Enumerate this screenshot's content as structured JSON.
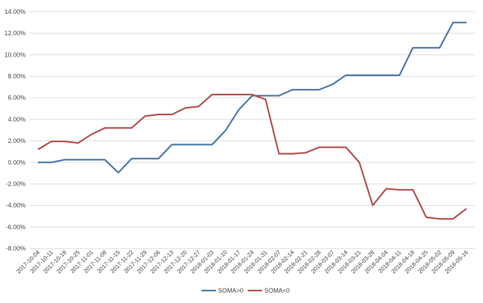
{
  "chart_data": {
    "type": "line",
    "title": "",
    "xlabel": "",
    "ylabel": "",
    "ylim": [
      -8,
      14
    ],
    "ytick_step": 2,
    "grid": true,
    "legend_position": "bottom",
    "x": [
      "2017-10-04",
      "2017-10-11",
      "2017-10-18",
      "2017-10-25",
      "2017-11-01",
      "2017-11-08",
      "2017-11-15",
      "2017-11-22",
      "2017-11-29",
      "2017-12-06",
      "2017-12-13",
      "2017-12-20",
      "2017-12-27",
      "2018-01-03",
      "2018-01-10",
      "2018-01-17",
      "2018-01-24",
      "2018-01-31",
      "2018-02-07",
      "2018-02-14",
      "2018-02-21",
      "2018-02-28",
      "2018-03-07",
      "2018-03-14",
      "2018-03-21",
      "2018-03-28",
      "2018-04-04",
      "2018-04-11",
      "2018-04-18",
      "2018-04-25",
      "2018-05-02",
      "2018-05-09",
      "2018-05-16"
    ],
    "series": [
      {
        "name": "SOMA>0",
        "color": "#4472a4",
        "values": [
          0.0,
          0.0,
          0.25,
          0.25,
          0.25,
          0.25,
          -0.95,
          0.35,
          0.35,
          0.35,
          1.65,
          1.65,
          1.65,
          1.65,
          2.95,
          4.9,
          6.2,
          6.2,
          6.2,
          6.75,
          6.75,
          6.75,
          7.25,
          8.1,
          8.1,
          8.1,
          8.1,
          8.1,
          10.65,
          10.65,
          10.65,
          13.0,
          13.0
        ]
      },
      {
        "name": "SOMA<0",
        "color": "#b04a48",
        "values": [
          1.2,
          1.95,
          1.95,
          1.8,
          2.6,
          3.2,
          3.2,
          3.2,
          4.3,
          4.45,
          4.45,
          5.05,
          5.2,
          6.3,
          6.3,
          6.3,
          6.3,
          5.85,
          0.8,
          0.8,
          0.9,
          1.4,
          1.4,
          1.4,
          0.0,
          -4.0,
          -2.45,
          -2.55,
          -2.55,
          -5.1,
          -5.25,
          -5.25,
          -4.3
        ]
      }
    ]
  }
}
